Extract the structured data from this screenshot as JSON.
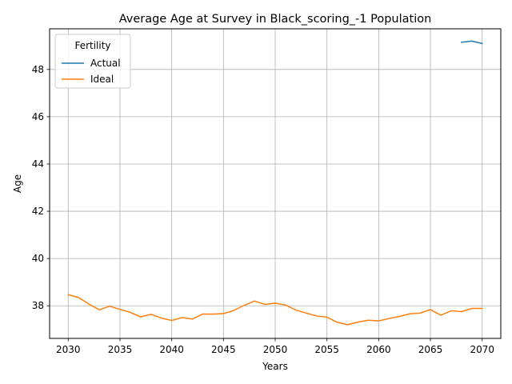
{
  "chart_data": {
    "type": "line",
    "title": "Average Age at Survey in Black_scoring_-1 Population",
    "xlabel": "Years",
    "ylabel": "Age",
    "xlim": [
      2028.2,
      2071.8
    ],
    "ylim": [
      36.62,
      49.72
    ],
    "xticks": [
      2030,
      2035,
      2040,
      2045,
      2050,
      2055,
      2060,
      2065,
      2070
    ],
    "yticks": [
      38,
      40,
      42,
      44,
      46,
      48
    ],
    "grid": true,
    "legend": {
      "title": "Fertility",
      "placement": "top-left"
    },
    "series": [
      {
        "name": "Actual",
        "color": "#1f77b4",
        "x": [
          2068,
          2069,
          2070
        ],
        "values": [
          49.15,
          49.2,
          49.1
        ]
      },
      {
        "name": "Ideal",
        "color": "#ff7f0e",
        "x": [
          2030,
          2031,
          2032,
          2033,
          2034,
          2035,
          2036,
          2037,
          2038,
          2039,
          2040,
          2041,
          2042,
          2043,
          2044,
          2045,
          2046,
          2047,
          2048,
          2049,
          2050,
          2051,
          2052,
          2053,
          2054,
          2055,
          2056,
          2057,
          2058,
          2059,
          2060,
          2061,
          2062,
          2063,
          2064,
          2065,
          2066,
          2067,
          2068,
          2069,
          2070
        ],
        "values": [
          38.47,
          38.35,
          38.07,
          37.83,
          37.98,
          37.85,
          37.72,
          37.53,
          37.64,
          37.48,
          37.38,
          37.5,
          37.44,
          37.65,
          37.65,
          37.67,
          37.8,
          38.02,
          38.2,
          38.06,
          38.11,
          38.03,
          37.82,
          37.69,
          37.57,
          37.52,
          37.3,
          37.2,
          37.31,
          37.39,
          37.36,
          37.46,
          37.55,
          37.66,
          37.69,
          37.84,
          37.6,
          37.79,
          37.75,
          37.89,
          37.89
        ]
      }
    ]
  }
}
